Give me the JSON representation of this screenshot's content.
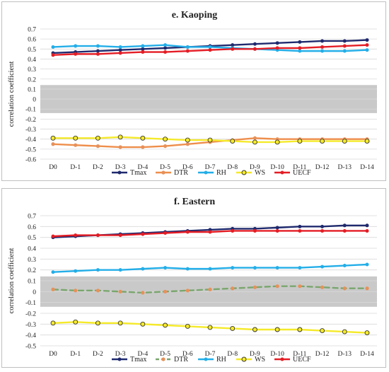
{
  "charts": [
    {
      "type": "line",
      "title": "e. Kaoping",
      "ylabel": "correlation coefficient",
      "ylim": [
        -0.6,
        0.7
      ],
      "yticks": [
        "0.7",
        "0.6",
        "0.5",
        "0.4",
        "0.3",
        "0.2",
        "0.1",
        "0",
        "-0.1",
        "-0.2",
        "-0.3",
        "-0.4",
        "-0.5",
        "-0.6"
      ],
      "categories": [
        "D0",
        "D-1",
        "D-2",
        "D-3",
        "D-4",
        "D-5",
        "D-6",
        "D-7",
        "D-8",
        "D-9",
        "D-10",
        "D-11",
        "D-12",
        "D-13",
        "D-14"
      ],
      "shaded_band": [
        -0.14,
        0.14
      ],
      "series": [
        {
          "name": "Tmax",
          "color": "#1f2a6e",
          "marker": "circle",
          "dash": false,
          "values": [
            0.46,
            0.47,
            0.48,
            0.49,
            0.5,
            0.51,
            0.52,
            0.53,
            0.54,
            0.55,
            0.56,
            0.57,
            0.58,
            0.58,
            0.59
          ]
        },
        {
          "name": "DTR",
          "color": "#ee8e4b",
          "marker": "dot",
          "dash": false,
          "values": [
            -0.45,
            -0.46,
            -0.47,
            -0.48,
            -0.48,
            -0.47,
            -0.45,
            -0.43,
            -0.41,
            -0.39,
            -0.4,
            -0.4,
            -0.4,
            -0.4,
            -0.4
          ]
        },
        {
          "name": "RH",
          "color": "#23aee8",
          "marker": "circle",
          "dash": false,
          "values": [
            0.52,
            0.53,
            0.53,
            0.52,
            0.53,
            0.54,
            0.52,
            0.52,
            0.51,
            0.5,
            0.49,
            0.48,
            0.48,
            0.48,
            0.49
          ]
        },
        {
          "name": "WS",
          "color": "#f5ea2a",
          "marker": "hollow",
          "dash": false,
          "values": [
            -0.39,
            -0.39,
            -0.39,
            -0.38,
            -0.39,
            -0.4,
            -0.41,
            -0.41,
            -0.42,
            -0.43,
            -0.43,
            -0.42,
            -0.42,
            -0.42,
            -0.42
          ]
        },
        {
          "name": "UECF",
          "color": "#e41d25",
          "marker": "circle",
          "dash": false,
          "values": [
            0.44,
            0.45,
            0.45,
            0.46,
            0.47,
            0.47,
            0.48,
            0.49,
            0.5,
            0.5,
            0.51,
            0.51,
            0.52,
            0.53,
            0.54
          ]
        }
      ]
    },
    {
      "type": "line",
      "title": "f. Eastern",
      "ylabel": "correlation coefficient",
      "ylim": [
        -0.5,
        0.7
      ],
      "yticks": [
        "0.7",
        "0.6",
        "0.5",
        "0.4",
        "0.3",
        "0.2",
        "0.1",
        "0",
        "-0.1",
        "-0.2",
        "-0.3",
        "-0.4",
        "-0.5"
      ],
      "categories": [
        "D0",
        "D-1",
        "D-2",
        "D-3",
        "D-4",
        "D-5",
        "D-6",
        "D-7",
        "D-8",
        "D-9",
        "D-10",
        "D-11",
        "D-12",
        "D-13",
        "D-14"
      ],
      "shaded_band": [
        -0.14,
        0.14
      ],
      "series": [
        {
          "name": "Tmax",
          "color": "#1f2a6e",
          "marker": "circle",
          "dash": false,
          "values": [
            0.5,
            0.51,
            0.52,
            0.53,
            0.54,
            0.55,
            0.56,
            0.57,
            0.58,
            0.58,
            0.59,
            0.6,
            0.6,
            0.61,
            0.61
          ]
        },
        {
          "name": "DTR",
          "color": "#7aa66e",
          "marker": "dot",
          "dash": true,
          "values": [
            0.02,
            0.01,
            0.01,
            0.0,
            -0.01,
            0.0,
            0.01,
            0.02,
            0.03,
            0.04,
            0.05,
            0.05,
            0.04,
            0.03,
            0.03
          ]
        },
        {
          "name": "RH",
          "color": "#23aee8",
          "marker": "circle",
          "dash": false,
          "values": [
            0.18,
            0.19,
            0.2,
            0.2,
            0.21,
            0.22,
            0.21,
            0.21,
            0.22,
            0.22,
            0.22,
            0.22,
            0.23,
            0.24,
            0.25
          ]
        },
        {
          "name": "WS",
          "color": "#f5ea2a",
          "marker": "hollow",
          "dash": false,
          "values": [
            -0.29,
            -0.28,
            -0.29,
            -0.29,
            -0.3,
            -0.31,
            -0.32,
            -0.33,
            -0.34,
            -0.35,
            -0.35,
            -0.35,
            -0.36,
            -0.37,
            -0.38
          ]
        },
        {
          "name": "UECF",
          "color": "#e41d25",
          "marker": "circle",
          "dash": false,
          "values": [
            0.51,
            0.52,
            0.52,
            0.52,
            0.53,
            0.54,
            0.55,
            0.55,
            0.56,
            0.56,
            0.56,
            0.56,
            0.56,
            0.56,
            0.56
          ]
        }
      ]
    }
  ]
}
